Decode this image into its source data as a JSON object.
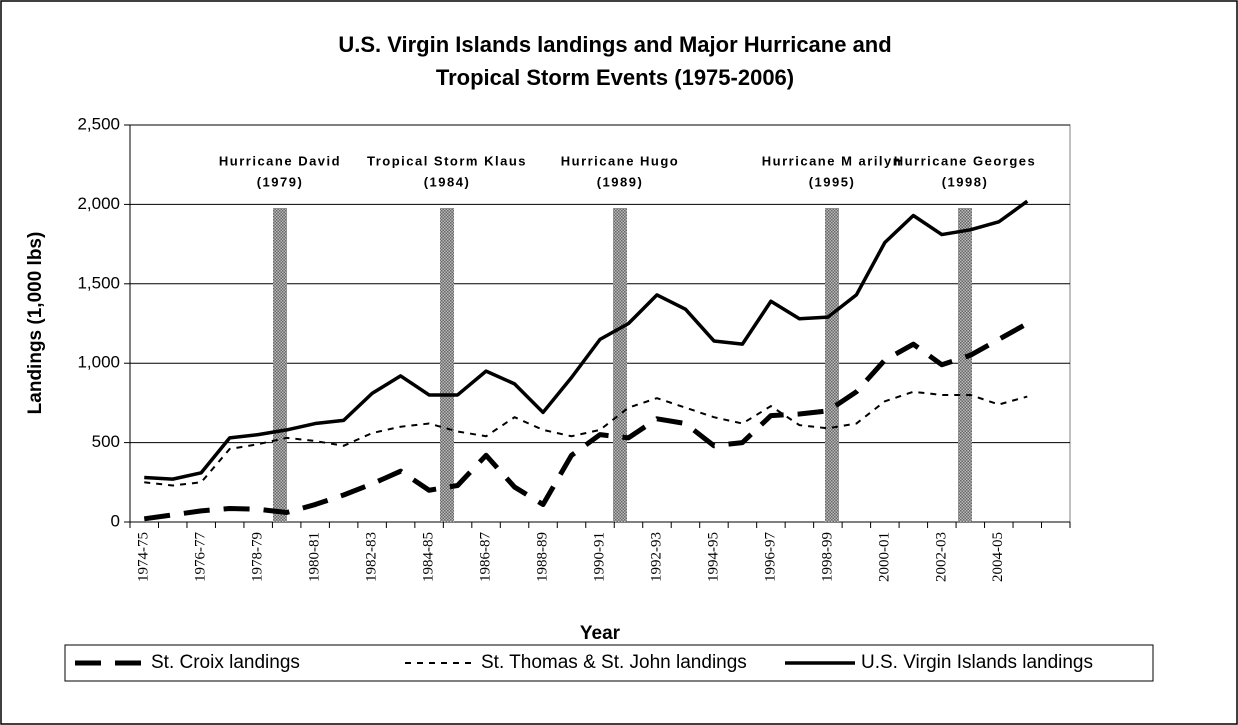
{
  "chart_data": {
    "type": "line",
    "title": [
      "U.S. Virgin Islands landings and Major Hurricane and",
      "Tropical Storm Events (1975-2006)"
    ],
    "x_label": "Year",
    "y_label": "Landings (1,000 lbs)",
    "categories": [
      "1974-75",
      null,
      "1976-77",
      null,
      "1978-79",
      null,
      "1980-81",
      null,
      "1982-83",
      null,
      "1984-85",
      null,
      "1986-87",
      null,
      "1988-89",
      null,
      "1990-91",
      null,
      "1992-93",
      null,
      "1994-95",
      null,
      "1996-97",
      null,
      "1998-99",
      null,
      "2000-01",
      null,
      "2002-03",
      null,
      "2004-05",
      null,
      null
    ],
    "ylim": [
      0,
      2500
    ],
    "yticks": [
      0,
      500,
      {
        "value": 1000,
        "label": "1,000"
      },
      {
        "value": 1500,
        "label": "1,500"
      },
      {
        "value": 2000,
        "label": "2,000"
      },
      {
        "value": 2500,
        "label": "2,500"
      }
    ],
    "grid": true,
    "series": [
      {
        "name": "St. Croix landings",
        "color": "#000000",
        "dash": "long-dash",
        "values": [
          20,
          45,
          70,
          85,
          80,
          60,
          110,
          170,
          240,
          320,
          200,
          230,
          420,
          220,
          110,
          420,
          550,
          530,
          650,
          620,
          480,
          500,
          670,
          680,
          700,
          820,
          1020,
          1120,
          990,
          1050,
          1150,
          1250,
          null
        ]
      },
      {
        "name": "St. Thomas & St. John landings",
        "color": "#000000",
        "dash": "dotted",
        "values": [
          250,
          230,
          250,
          460,
          490,
          530,
          510,
          480,
          560,
          600,
          620,
          570,
          540,
          660,
          580,
          540,
          580,
          720,
          780,
          720,
          660,
          620,
          730,
          610,
          590,
          620,
          760,
          820,
          800,
          800,
          740,
          790,
          null
        ]
      },
      {
        "name": "U.S. Virgin Islands landings",
        "color": "#000000",
        "dash": "solid",
        "values": [
          280,
          270,
          310,
          530,
          550,
          580,
          620,
          640,
          810,
          920,
          800,
          800,
          950,
          870,
          690,
          910,
          1150,
          1250,
          1430,
          1340,
          1140,
          1120,
          1390,
          1280,
          1290,
          1430,
          1760,
          1930,
          1810,
          1840,
          1890,
          2020,
          null
        ]
      }
    ],
    "annotations": [
      {
        "text": "Hurricane David",
        "year": "(1979)"
      },
      {
        "text": "Tropical Storm Klaus",
        "year": "(1984)"
      },
      {
        "text": "Hurricane Hugo",
        "year": "(1989)"
      },
      {
        "text": "Hurricane M arilyn",
        "year": "(1995)"
      },
      {
        "text": "Hurricane Georges",
        "year": "(1998)"
      }
    ]
  }
}
